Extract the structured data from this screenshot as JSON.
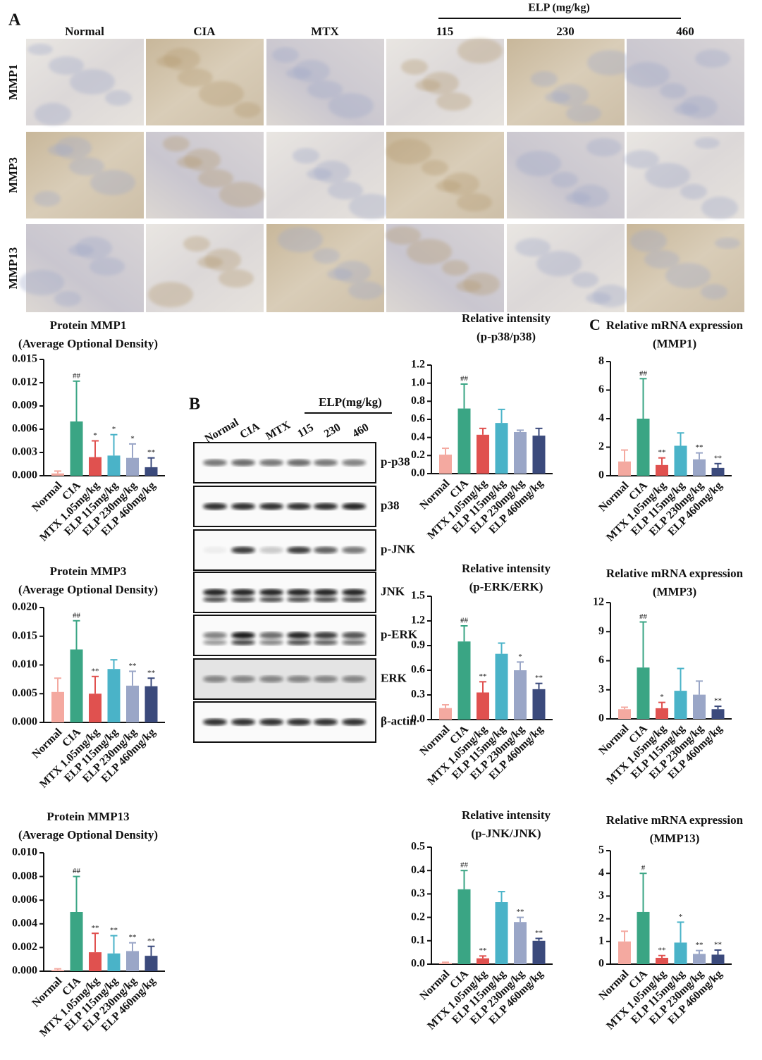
{
  "panel_a": {
    "label": "A",
    "group_label": "ELP (mg/kg)",
    "columns": [
      "Normal",
      "CIA",
      "MTX",
      "115",
      "230",
      "460"
    ],
    "rows": [
      "MMP1",
      "MMP3",
      "MMP13"
    ]
  },
  "panel_b": {
    "label": "B",
    "group_label": "ELP(mg/kg)",
    "columns": [
      "Normal",
      "CIA",
      "MTX",
      "115",
      "230",
      "460"
    ],
    "rows": [
      "p-p38",
      "p38",
      "p-JNK",
      "JNK",
      "p-ERK",
      "ERK",
      "β-actin"
    ]
  },
  "panel_c": {
    "label": "C"
  },
  "chart_data": [
    {
      "type": "bar",
      "title": "Protein MMP1",
      "subtitle": "(Average Optional Density)",
      "categories": [
        "Normal",
        "CIA",
        "MTX 1.05mg/kg",
        "ELP 115mg/kg",
        "ELP 230mg/kg",
        "ELP 460mg/kg"
      ],
      "values": [
        0.0003,
        0.007,
        0.0024,
        0.0026,
        0.0023,
        0.0011
      ],
      "errors": [
        0.0003,
        0.0052,
        0.0021,
        0.0027,
        0.0018,
        0.0012
      ],
      "annotations": [
        null,
        "##",
        "*",
        "*",
        "*",
        "**"
      ],
      "colors": [
        "#f4a9a0",
        "#3aa584",
        "#e0514f",
        "#4ab3c8",
        "#9aa6c7",
        "#3b4a7c"
      ],
      "ylim": [
        0,
        0.015
      ],
      "yticks": [
        {
          "value": 0,
          "label": "0.000"
        },
        0.003,
        0.006,
        0.009,
        0.012,
        0.015
      ]
    },
    {
      "type": "bar",
      "title": "Protein MMP3",
      "subtitle": "(Average Optional Density)",
      "categories": [
        "Normal",
        "CIA",
        "MTX 1.05mg/kg",
        "ELP 115mg/kg",
        "ELP 230mg/kg",
        "ELP 460mg/kg"
      ],
      "values": [
        0.0053,
        0.0127,
        0.005,
        0.0093,
        0.0064,
        0.0063
      ],
      "errors": [
        0.0024,
        0.005,
        0.003,
        0.0016,
        0.0025,
        0.0014
      ],
      "annotations": [
        null,
        "##",
        "**",
        null,
        "**",
        "**"
      ],
      "colors": [
        "#f4a9a0",
        "#3aa584",
        "#e0514f",
        "#4ab3c8",
        "#9aa6c7",
        "#3b4a7c"
      ],
      "ylim": [
        0,
        0.02
      ],
      "yticks": [
        {
          "value": 0,
          "label": "0.000"
        },
        0.005,
        {
          "value": 0.01,
          "label": "0.010"
        },
        0.015,
        {
          "value": 0.02,
          "label": "0.020"
        }
      ]
    },
    {
      "type": "bar",
      "title": "Protein MMP13",
      "subtitle": "(Average Optional Density)",
      "categories": [
        "Normal",
        "CIA",
        "MTX 1.05mg/kg",
        "ELP 115mg/kg",
        "ELP 230mg/kg",
        "ELP 460mg/kg"
      ],
      "values": [
        0.0001,
        0.005,
        0.0016,
        0.0015,
        0.0017,
        0.0013
      ],
      "errors": [
        0.0001,
        0.003,
        0.0016,
        0.0015,
        0.0007,
        0.0008
      ],
      "annotations": [
        null,
        "##",
        "**",
        "**",
        "**",
        "**"
      ],
      "colors": [
        "#f4a9a0",
        "#3aa584",
        "#e0514f",
        "#4ab3c8",
        "#9aa6c7",
        "#3b4a7c"
      ],
      "ylim": [
        0,
        0.01
      ],
      "yticks": [
        {
          "value": 0,
          "label": "0.000"
        },
        0.002,
        0.004,
        0.006,
        0.008,
        {
          "value": 0.01,
          "label": "0.010"
        }
      ]
    },
    {
      "type": "bar",
      "title": "Relative intensity",
      "subtitle": "(p-p38/p38)",
      "categories": [
        "Normal",
        "CIA",
        "MTX 1.05mg/kg",
        "ELP 115mg/kg",
        "ELP 230mg/kg",
        "ELP 460mg/kg"
      ],
      "values": [
        0.21,
        0.72,
        0.43,
        0.56,
        0.46,
        0.42
      ],
      "errors": [
        0.07,
        0.27,
        0.07,
        0.15,
        0.02,
        0.08
      ],
      "annotations": [
        null,
        "##",
        null,
        null,
        null,
        null
      ],
      "colors": [
        "#f4a9a0",
        "#3aa584",
        "#e0514f",
        "#4ab3c8",
        "#9aa6c7",
        "#3b4a7c"
      ],
      "ylim": [
        0,
        1.2
      ],
      "yticks": [
        {
          "value": 0,
          "label": "0.0"
        },
        0.2,
        0.4,
        0.6,
        0.8,
        {
          "value": 1,
          "label": "1.0"
        },
        1.2
      ]
    },
    {
      "type": "bar",
      "title": "Relative intensity",
      "subtitle": "(p-ERK/ERK)",
      "categories": [
        "Normal",
        "CIA",
        "MTX 1.05mg/kg",
        "ELP 115mg/kg",
        "ELP 230mg/kg",
        "ELP 460mg/kg"
      ],
      "values": [
        0.14,
        0.95,
        0.33,
        0.8,
        0.6,
        0.37
      ],
      "errors": [
        0.04,
        0.19,
        0.13,
        0.13,
        0.1,
        0.07
      ],
      "annotations": [
        null,
        "##",
        "**",
        null,
        "*",
        "**"
      ],
      "colors": [
        "#f4a9a0",
        "#3aa584",
        "#e0514f",
        "#4ab3c8",
        "#9aa6c7",
        "#3b4a7c"
      ],
      "ylim": [
        0,
        1.5
      ],
      "yticks": [
        {
          "value": 0,
          "label": "0.0"
        },
        0.3,
        0.6,
        0.9,
        1.2,
        1.5
      ]
    },
    {
      "type": "bar",
      "title": "Relative intensity",
      "subtitle": "(p-JNK/JNK)",
      "categories": [
        "Normal",
        "CIA",
        "MTX 1.05mg/kg",
        "ELP 115mg/kg",
        "ELP 230mg/kg",
        "ELP 460mg/kg"
      ],
      "values": [
        0.005,
        0.32,
        0.025,
        0.265,
        0.18,
        0.1
      ],
      "errors": [
        0.003,
        0.08,
        0.01,
        0.045,
        0.02,
        0.01
      ],
      "annotations": [
        null,
        "##",
        "**",
        null,
        "**",
        "**"
      ],
      "colors": [
        "#f4a9a0",
        "#3aa584",
        "#e0514f",
        "#4ab3c8",
        "#9aa6c7",
        "#3b4a7c"
      ],
      "ylim": [
        0,
        0.5
      ],
      "yticks": [
        {
          "value": 0,
          "label": "0.0"
        },
        0.1,
        0.2,
        0.3,
        0.4,
        0.5
      ]
    },
    {
      "type": "bar",
      "title": "Relative mRNA expression",
      "subtitle": "(MMP1)",
      "categories": [
        "Normal",
        "CIA",
        "MTX 1.05mg/kg",
        "ELP 115mg/kg",
        "ELP 230mg/kg",
        "ELP 460mg/kg"
      ],
      "values": [
        1,
        4,
        0.75,
        2.1,
        1.15,
        0.55
      ],
      "errors": [
        0.8,
        2.8,
        0.5,
        0.9,
        0.45,
        0.3
      ],
      "annotations": [
        null,
        "##",
        "**",
        null,
        "**",
        "**"
      ],
      "colors": [
        "#f4a9a0",
        "#3aa584",
        "#e0514f",
        "#4ab3c8",
        "#9aa6c7",
        "#3b4a7c"
      ],
      "ylim": [
        0,
        8
      ],
      "yticks": [
        0,
        2,
        4,
        6,
        8
      ]
    },
    {
      "type": "bar",
      "title": "Relative mRNA expression",
      "subtitle": "(MMP3)",
      "categories": [
        "Normal",
        "CIA",
        "MTX 1.05mg/kg",
        "ELP 115mg/kg",
        "ELP 230mg/kg",
        "ELP 460mg/kg"
      ],
      "values": [
        1,
        5.3,
        1.1,
        2.9,
        2.5,
        1
      ],
      "errors": [
        0.2,
        4.7,
        0.6,
        2.3,
        1.4,
        0.3
      ],
      "annotations": [
        null,
        "##",
        "*",
        null,
        null,
        "**"
      ],
      "colors": [
        "#f4a9a0",
        "#3aa584",
        "#e0514f",
        "#4ab3c8",
        "#9aa6c7",
        "#3b4a7c"
      ],
      "ylim": [
        0,
        12
      ],
      "yticks": [
        0,
        3,
        6,
        9,
        12
      ]
    },
    {
      "type": "bar",
      "title": "Relative mRNA expression",
      "subtitle": "(MMP13)",
      "categories": [
        "Normal",
        "CIA",
        "MTX 1.05mg/kg",
        "ELP 115mg/kg",
        "ELP 230mg/kg",
        "ELP 460mg/kg"
      ],
      "values": [
        1,
        2.3,
        0.28,
        0.95,
        0.45,
        0.42
      ],
      "errors": [
        0.45,
        1.7,
        0.1,
        0.9,
        0.15,
        0.2
      ],
      "annotations": [
        null,
        "#",
        "**",
        "*",
        "**",
        "**"
      ],
      "colors": [
        "#f4a9a0",
        "#3aa584",
        "#e0514f",
        "#4ab3c8",
        "#9aa6c7",
        "#3b4a7c"
      ],
      "ylim": [
        0,
        5
      ],
      "yticks": [
        0,
        1,
        2,
        3,
        4,
        5
      ]
    }
  ]
}
